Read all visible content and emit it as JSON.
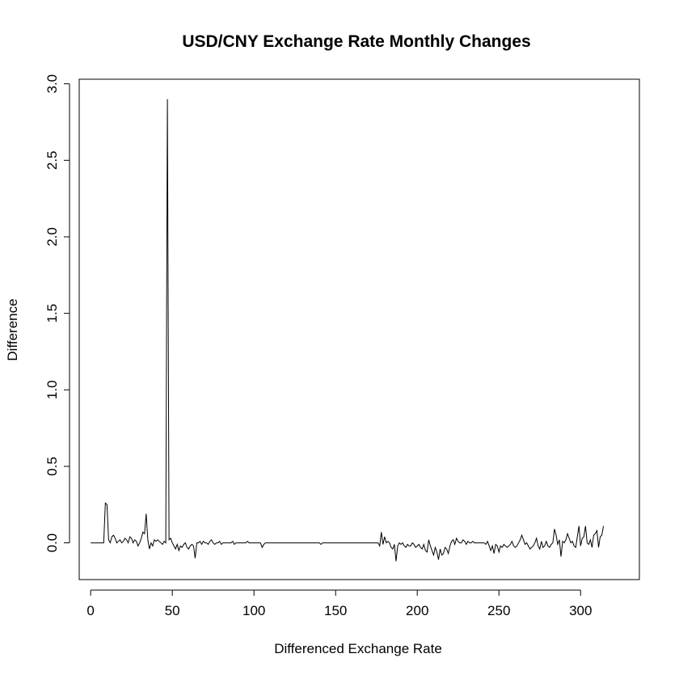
{
  "chart_data": {
    "type": "line",
    "title": "USD/CNY Exchange Rate Monthly Changes",
    "xlabel": "Differenced Exchange Rate",
    "ylabel": "Difference",
    "xlim": [
      -7,
      336
    ],
    "ylim": [
      -0.24,
      3.03
    ],
    "x_ticks": [
      0,
      50,
      100,
      150,
      200,
      250,
      300
    ],
    "x_tick_labels": [
      "0",
      "50",
      "100",
      "150",
      "200",
      "250",
      "300"
    ],
    "y_ticks": [
      0.0,
      0.5,
      1.0,
      1.5,
      2.0,
      2.5,
      3.0
    ],
    "y_tick_labels": [
      "0.0",
      "0.5",
      "1.0",
      "1.5",
      "2.0",
      "2.5",
      "3.0"
    ],
    "grid": false,
    "legend": "none",
    "line_color": "#000000",
    "series": [
      {
        "values": [
          0.0,
          0.0,
          0.0,
          0.0,
          0.0,
          0.0,
          0.0,
          0.0,
          0.0,
          0.26,
          0.25,
          0.02,
          0.0,
          0.04,
          0.05,
          0.03,
          0.0,
          0.01,
          0.02,
          0.0,
          0.01,
          0.03,
          0.02,
          0.0,
          0.04,
          0.03,
          0.0,
          0.02,
          0.01,
          -0.02,
          0.0,
          0.03,
          0.07,
          0.06,
          0.19,
          0.02,
          -0.04,
          0.0,
          -0.02,
          0.02,
          0.01,
          0.02,
          0.01,
          0.0,
          -0.01,
          0.01,
          0.0,
          2.9,
          0.02,
          0.03,
          0.0,
          -0.02,
          -0.04,
          -0.01,
          -0.05,
          -0.02,
          -0.03,
          -0.01,
          0.0,
          -0.03,
          -0.04,
          -0.02,
          -0.01,
          -0.02,
          -0.1,
          0.0,
          0.0,
          0.01,
          -0.01,
          0.01,
          0.0,
          0.0,
          -0.01,
          0.01,
          0.02,
          0.0,
          -0.01,
          0.0,
          0.0,
          0.01,
          -0.01,
          0.0,
          0.0,
          0.0,
          0.0,
          0.0,
          0.0,
          0.01,
          -0.01,
          0.0,
          0.0,
          0.0,
          0.0,
          0.0,
          0.0,
          0.0,
          0.01,
          0.0,
          0.0,
          0.0,
          0.0,
          0.0,
          0.0,
          0.0,
          0.0,
          -0.03,
          -0.01,
          0.0,
          0.0,
          0.0,
          0.0,
          0.0,
          0.0,
          0.0,
          0.0,
          0.0,
          0.0,
          0.0,
          0.0,
          0.0,
          0.0,
          0.0,
          0.0,
          0.0,
          0.0,
          0.0,
          0.0,
          0.0,
          0.0,
          0.0,
          0.0,
          0.0,
          0.0,
          0.0,
          0.0,
          0.0,
          0.0,
          0.0,
          0.0,
          0.0,
          0.0,
          -0.01,
          0.0,
          0.0,
          0.0,
          0.0,
          0.0,
          0.0,
          0.0,
          0.0,
          0.0,
          0.0,
          0.0,
          0.0,
          0.0,
          0.0,
          0.0,
          0.0,
          0.0,
          0.0,
          0.0,
          0.0,
          0.0,
          0.0,
          0.0,
          0.0,
          0.0,
          0.0,
          0.0,
          0.0,
          0.0,
          0.0,
          0.0,
          0.0,
          0.0,
          0.0,
          0.0,
          -0.02,
          0.07,
          -0.01,
          0.04,
          0.0,
          0.01,
          0.0,
          -0.03,
          -0.04,
          -0.01,
          -0.12,
          -0.02,
          0.0,
          -0.01,
          0.0,
          -0.02,
          -0.03,
          -0.01,
          -0.02,
          -0.02,
          0.0,
          -0.01,
          -0.03,
          -0.02,
          -0.01,
          -0.03,
          -0.04,
          -0.01,
          -0.05,
          -0.06,
          0.02,
          -0.02,
          -0.05,
          -0.08,
          -0.03,
          -0.06,
          -0.11,
          -0.04,
          -0.08,
          -0.07,
          -0.03,
          -0.04,
          -0.07,
          -0.02,
          0.01,
          0.02,
          -0.01,
          0.03,
          0.01,
          0.0,
          0.0,
          0.02,
          0.01,
          -0.01,
          0.01,
          0.0,
          0.0,
          0.01,
          0.0,
          0.0,
          0.0,
          0.0,
          0.0,
          0.0,
          0.0,
          -0.01,
          0.01,
          -0.02,
          -0.05,
          -0.02,
          -0.07,
          -0.01,
          -0.02,
          -0.06,
          -0.02,
          -0.03,
          -0.01,
          -0.02,
          -0.03,
          -0.02,
          -0.01,
          0.01,
          -0.02,
          -0.03,
          -0.02,
          0.0,
          0.02,
          0.05,
          0.02,
          -0.01,
          0.0,
          -0.02,
          -0.04,
          -0.03,
          -0.02,
          0.0,
          0.03,
          -0.02,
          -0.04,
          0.01,
          -0.03,
          -0.02,
          0.01,
          -0.02,
          -0.03,
          -0.01,
          0.0,
          0.09,
          0.05,
          -0.01,
          0.02,
          -0.09,
          0.01,
          0.0,
          0.02,
          0.06,
          0.03,
          0.0,
          0.01,
          -0.02,
          -0.03,
          0.04,
          0.11,
          -0.02,
          0.03,
          0.04,
          0.11,
          0.0,
          -0.01,
          0.02,
          -0.03,
          0.05,
          0.06,
          0.08,
          -0.03,
          0.04,
          0.05,
          0.11
        ]
      }
    ]
  }
}
